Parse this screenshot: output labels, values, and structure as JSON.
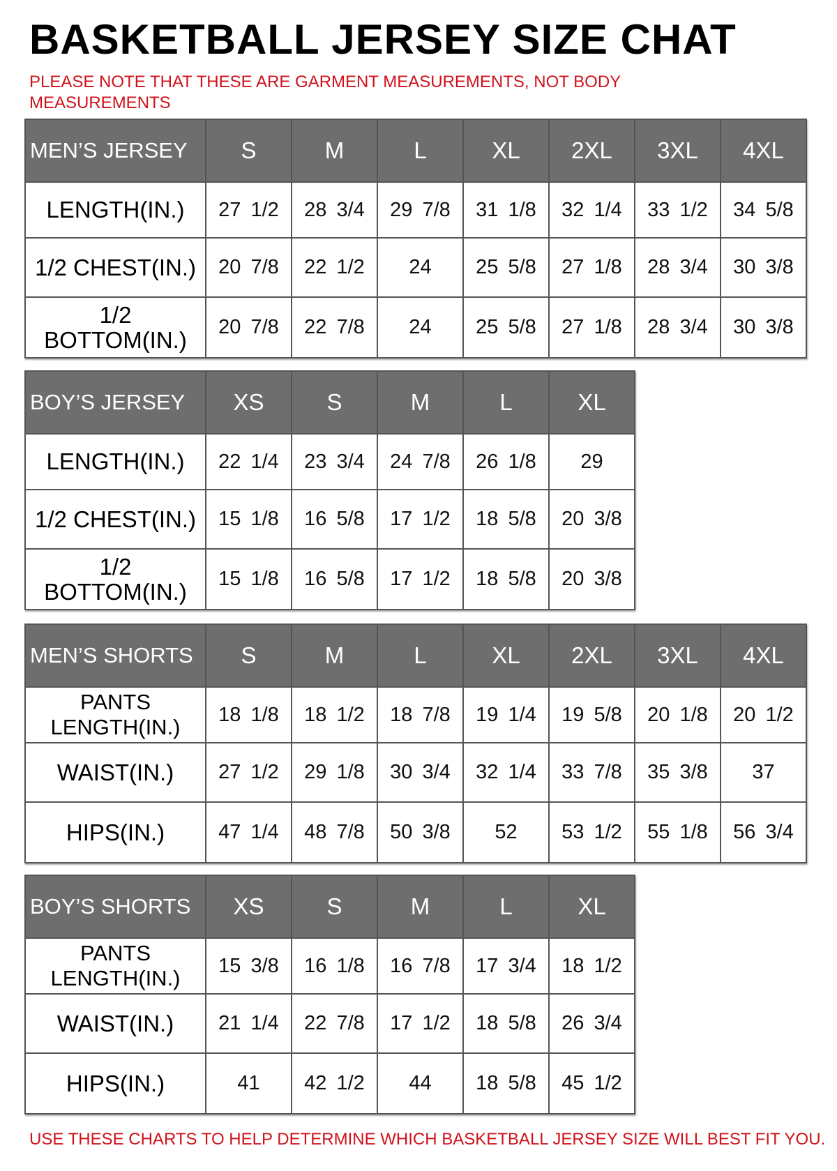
{
  "title": "BASKETBALL JERSEY SIZE CHAT",
  "note": "PLEASE NOTE THAT THESE ARE GARMENT MEASUREMENTS, NOT BODY MEASUREMENTS",
  "footer": "USE THESE CHARTS TO HELP DETERMINE WHICH BASKETBALL JERSEY SIZE WILL BEST FIT YOU.",
  "colors": {
    "header_bg": "#6e6e6e",
    "note_red": "#d0121b"
  },
  "tables": [
    {
      "title": "MEN’S JERSEY",
      "sizes": [
        "S",
        "M",
        "L",
        "XL",
        "2XL",
        "3XL",
        "4XL"
      ],
      "rows": [
        {
          "label": "LENGTH(IN.)",
          "values": [
            "27 1/2",
            "28 3/4",
            "29 7/8",
            "31 1/8",
            "32 1/4",
            "33 1/2",
            "34 5/8"
          ]
        },
        {
          "label": "1/2 CHEST(IN.)",
          "values": [
            "20 7/8",
            "22 1/2",
            "24",
            "25 5/8",
            "27 1/8",
            "28 3/4",
            "30 3/8"
          ]
        },
        {
          "label": "1/2 BOTTOM(IN.)",
          "values": [
            "20 7/8",
            "22 7/8",
            "24",
            "25 5/8",
            "27 1/8",
            "28 3/4",
            "30 3/8"
          ]
        }
      ]
    },
    {
      "title": "BOY’S JERSEY",
      "sizes": [
        "XS",
        "S",
        "M",
        "L",
        "XL"
      ],
      "rows": [
        {
          "label": "LENGTH(IN.)",
          "values": [
            "22 1/4",
            "23 3/4",
            "24 7/8",
            "26 1/8",
            "29"
          ]
        },
        {
          "label": "1/2 CHEST(IN.)",
          "values": [
            "15 1/8",
            "16 5/8",
            "17 1/2",
            "18 5/8",
            "20 3/8"
          ]
        },
        {
          "label": "1/2 BOTTOM(IN.)",
          "values": [
            "15 1/8",
            "16 5/8",
            "17 1/2",
            "18 5/8",
            "20 3/8"
          ]
        }
      ]
    },
    {
      "title": "MEN’S SHORTS",
      "sizes": [
        "S",
        "M",
        "L",
        "XL",
        "2XL",
        "3XL",
        "4XL"
      ],
      "rows": [
        {
          "label": "PANTS LENGTH(IN.)",
          "values": [
            "18 1/8",
            "18 1/2",
            "18 7/8",
            "19 1/4",
            "19 5/8",
            "20 1/8",
            "20 1/2"
          ]
        },
        {
          "label": "WAIST(IN.)",
          "values": [
            "27 1/2",
            "29 1/8",
            "30 3/4",
            "32 1/4",
            "33 7/8",
            "35 3/8",
            "37"
          ]
        },
        {
          "label": "HIPS(IN.)",
          "values": [
            "47 1/4",
            "48 7/8",
            "50 3/8",
            "52",
            "53 1/2",
            "55 1/8",
            "56 3/4"
          ]
        }
      ]
    },
    {
      "title": "BOY’S SHORTS",
      "sizes": [
        "XS",
        "S",
        "M",
        "L",
        "XL"
      ],
      "rows": [
        {
          "label": "PANTS LENGTH(IN.)",
          "values": [
            "15 3/8",
            "16 1/8",
            "16 7/8",
            "17 3/4",
            "18 1/2"
          ]
        },
        {
          "label": "WAIST(IN.)",
          "values": [
            "21 1/4",
            "22 7/8",
            "17 1/2",
            "18 5/8",
            "26 3/4"
          ]
        },
        {
          "label": "HIPS(IN.)",
          "values": [
            "41",
            "42 1/2",
            "44",
            "18 5/8",
            "45 1/2"
          ]
        }
      ]
    }
  ]
}
